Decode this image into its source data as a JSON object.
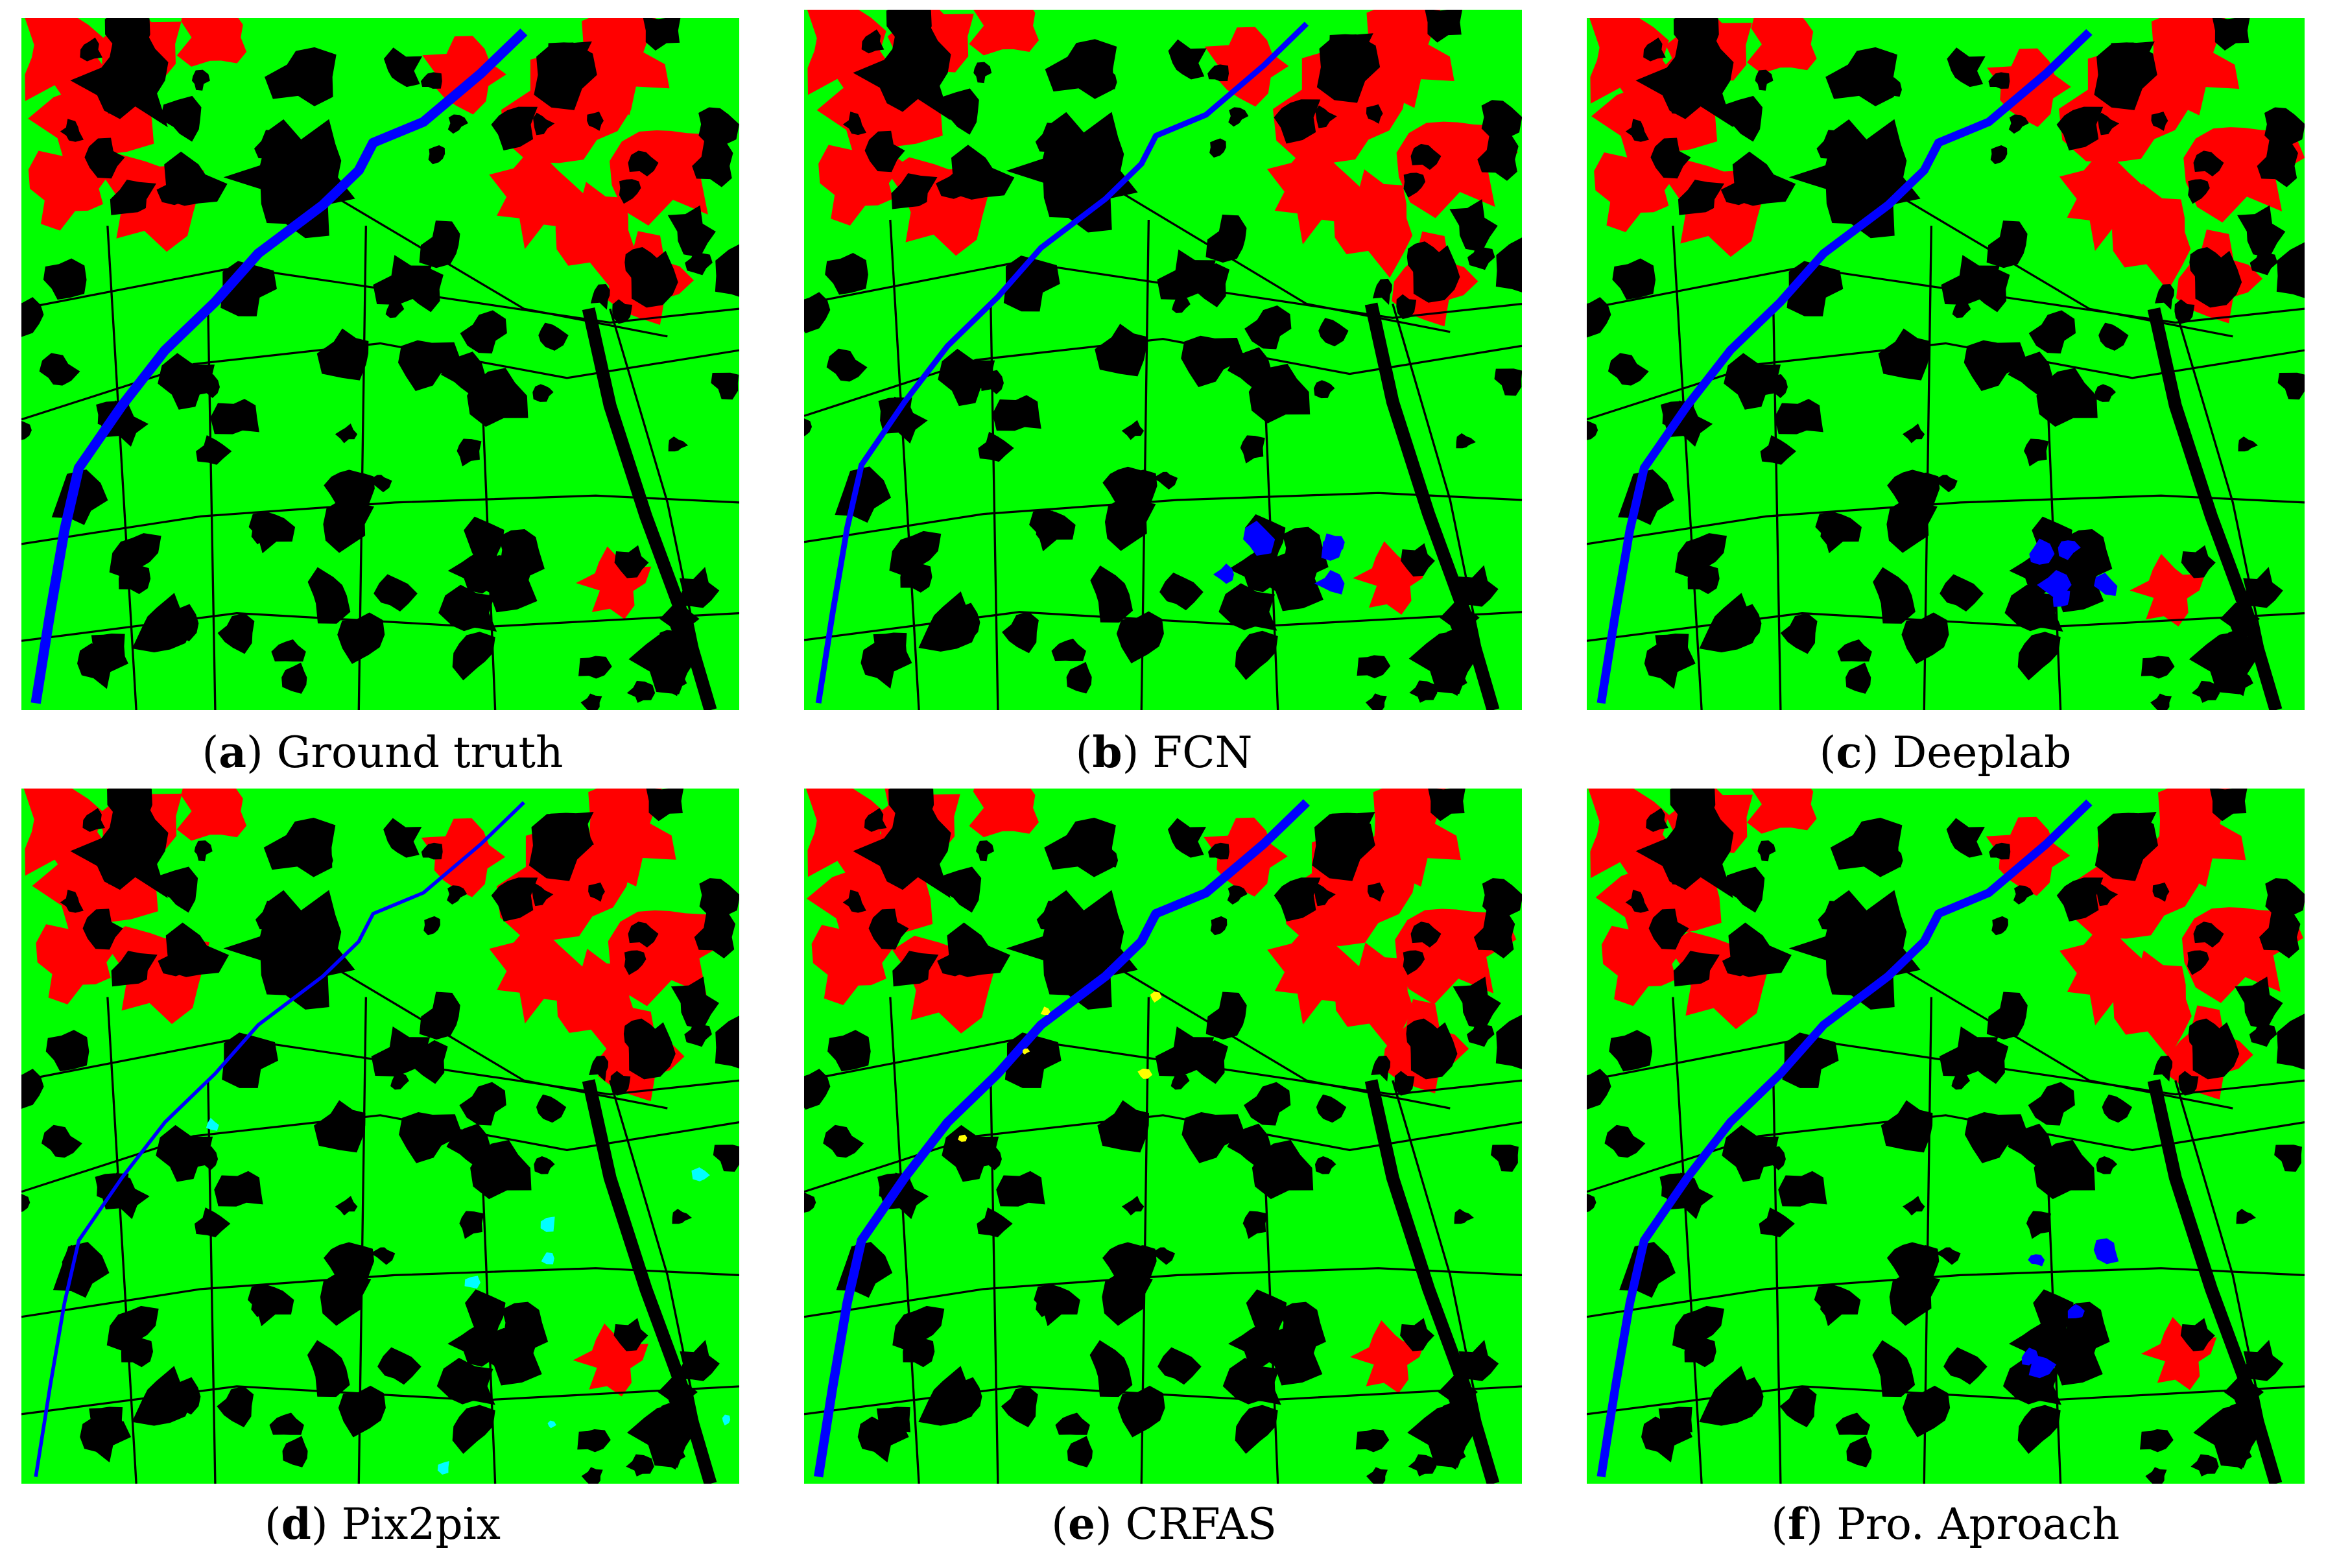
{
  "figure": {
    "panels": [
      {
        "letter": "a",
        "label": "Ground truth",
        "variant": 0
      },
      {
        "letter": "b",
        "label": "FCN",
        "variant": 1
      },
      {
        "letter": "c",
        "label": "Deeplab",
        "variant": 2
      },
      {
        "letter": "d",
        "label": "Pix2pix",
        "variant": 3
      },
      {
        "letter": "e",
        "label": "CRFAS",
        "variant": 4
      },
      {
        "letter": "f",
        "label": "Pro. Aproach",
        "variant": 5
      }
    ],
    "class_colors": {
      "vegetation": "#00ff00",
      "urban": "#ff0000",
      "water": "#0000ff",
      "background": "#000000",
      "shallow-water": "#00ffff",
      "other": "#ffff00"
    }
  }
}
